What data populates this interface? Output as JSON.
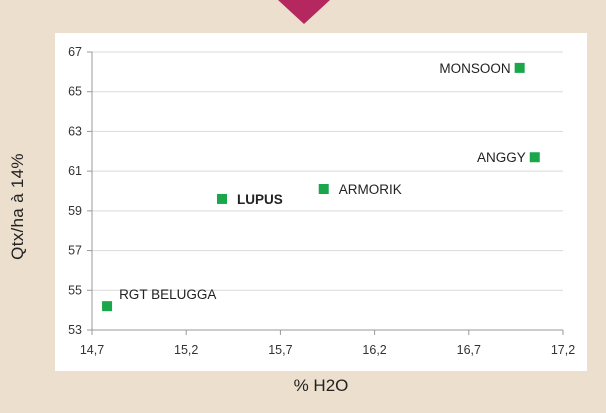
{
  "colors": {
    "background": "#ecdfcd",
    "plot_background": "#ffffff",
    "marker": "#1aa64a",
    "highlight_label": "#1aa64a",
    "pointer": "#b5285f",
    "axis": "#999999"
  },
  "chart_data": {
    "type": "scatter",
    "title": "",
    "xlabel": "% H2O",
    "ylabel": "Qtx/ha à 14%",
    "xlim": [
      14.7,
      17.2
    ],
    "ylim": [
      53,
      67
    ],
    "x_ticks": [
      "14,7",
      "15,2",
      "15,7",
      "16,2",
      "16,7",
      "17,2"
    ],
    "y_ticks": [
      "53",
      "55",
      "57",
      "59",
      "61",
      "63",
      "65",
      "67"
    ],
    "grid": "horizontal",
    "legend": "none",
    "points": [
      {
        "label": "RGT BELUGGA",
        "x": 14.78,
        "y": 54.2,
        "highlight": false,
        "label_side": "right-up"
      },
      {
        "label": "LUPUS",
        "x": 15.39,
        "y": 59.6,
        "highlight": true,
        "label_side": "right"
      },
      {
        "label": "ARMORIK",
        "x": 15.93,
        "y": 60.1,
        "highlight": false,
        "label_side": "right"
      },
      {
        "label": "MONSOON",
        "x": 16.97,
        "y": 66.2,
        "highlight": false,
        "label_side": "left"
      },
      {
        "label": "ANGGY",
        "x": 17.05,
        "y": 61.7,
        "highlight": false,
        "label_side": "left"
      }
    ]
  }
}
